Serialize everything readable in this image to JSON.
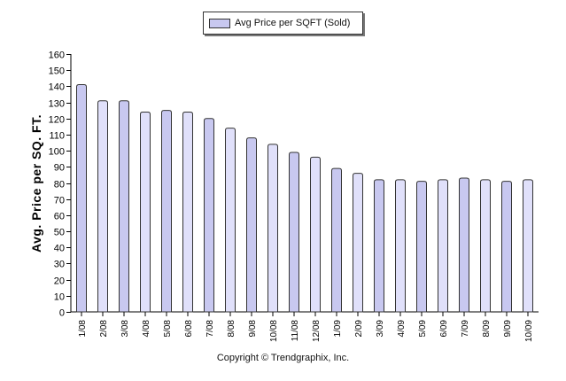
{
  "chart_data": {
    "type": "bar",
    "categories": [
      "1/08",
      "2/08",
      "3/08",
      "4/08",
      "5/08",
      "6/08",
      "7/08",
      "8/08",
      "9/08",
      "10/08",
      "11/08",
      "12/08",
      "1/09",
      "2/09",
      "3/09",
      "4/09",
      "5/09",
      "6/09",
      "7/09",
      "8/09",
      "9/09",
      "10/09"
    ],
    "series": [
      {
        "name": "Avg Price per SQFT (Sold)",
        "values": [
          141,
          131,
          131,
          124,
          125,
          124,
          120,
          114,
          108,
          104,
          99,
          96,
          89,
          86,
          82,
          82,
          81,
          82,
          83,
          82,
          81,
          82
        ]
      }
    ],
    "ylabel": "Avg. Price per SQ. FT.",
    "ylim": [
      0,
      160
    ],
    "yticks": [
      0,
      10,
      20,
      30,
      40,
      50,
      60,
      70,
      80,
      90,
      100,
      110,
      120,
      130,
      140,
      150,
      160
    ],
    "legend_position": "top-center",
    "grid": false,
    "bar_color": "#c8c8f0",
    "alt_bar_color": "#e0e0fa"
  },
  "footer": {
    "copyright": "Copyright © Trendgraphix, Inc."
  }
}
